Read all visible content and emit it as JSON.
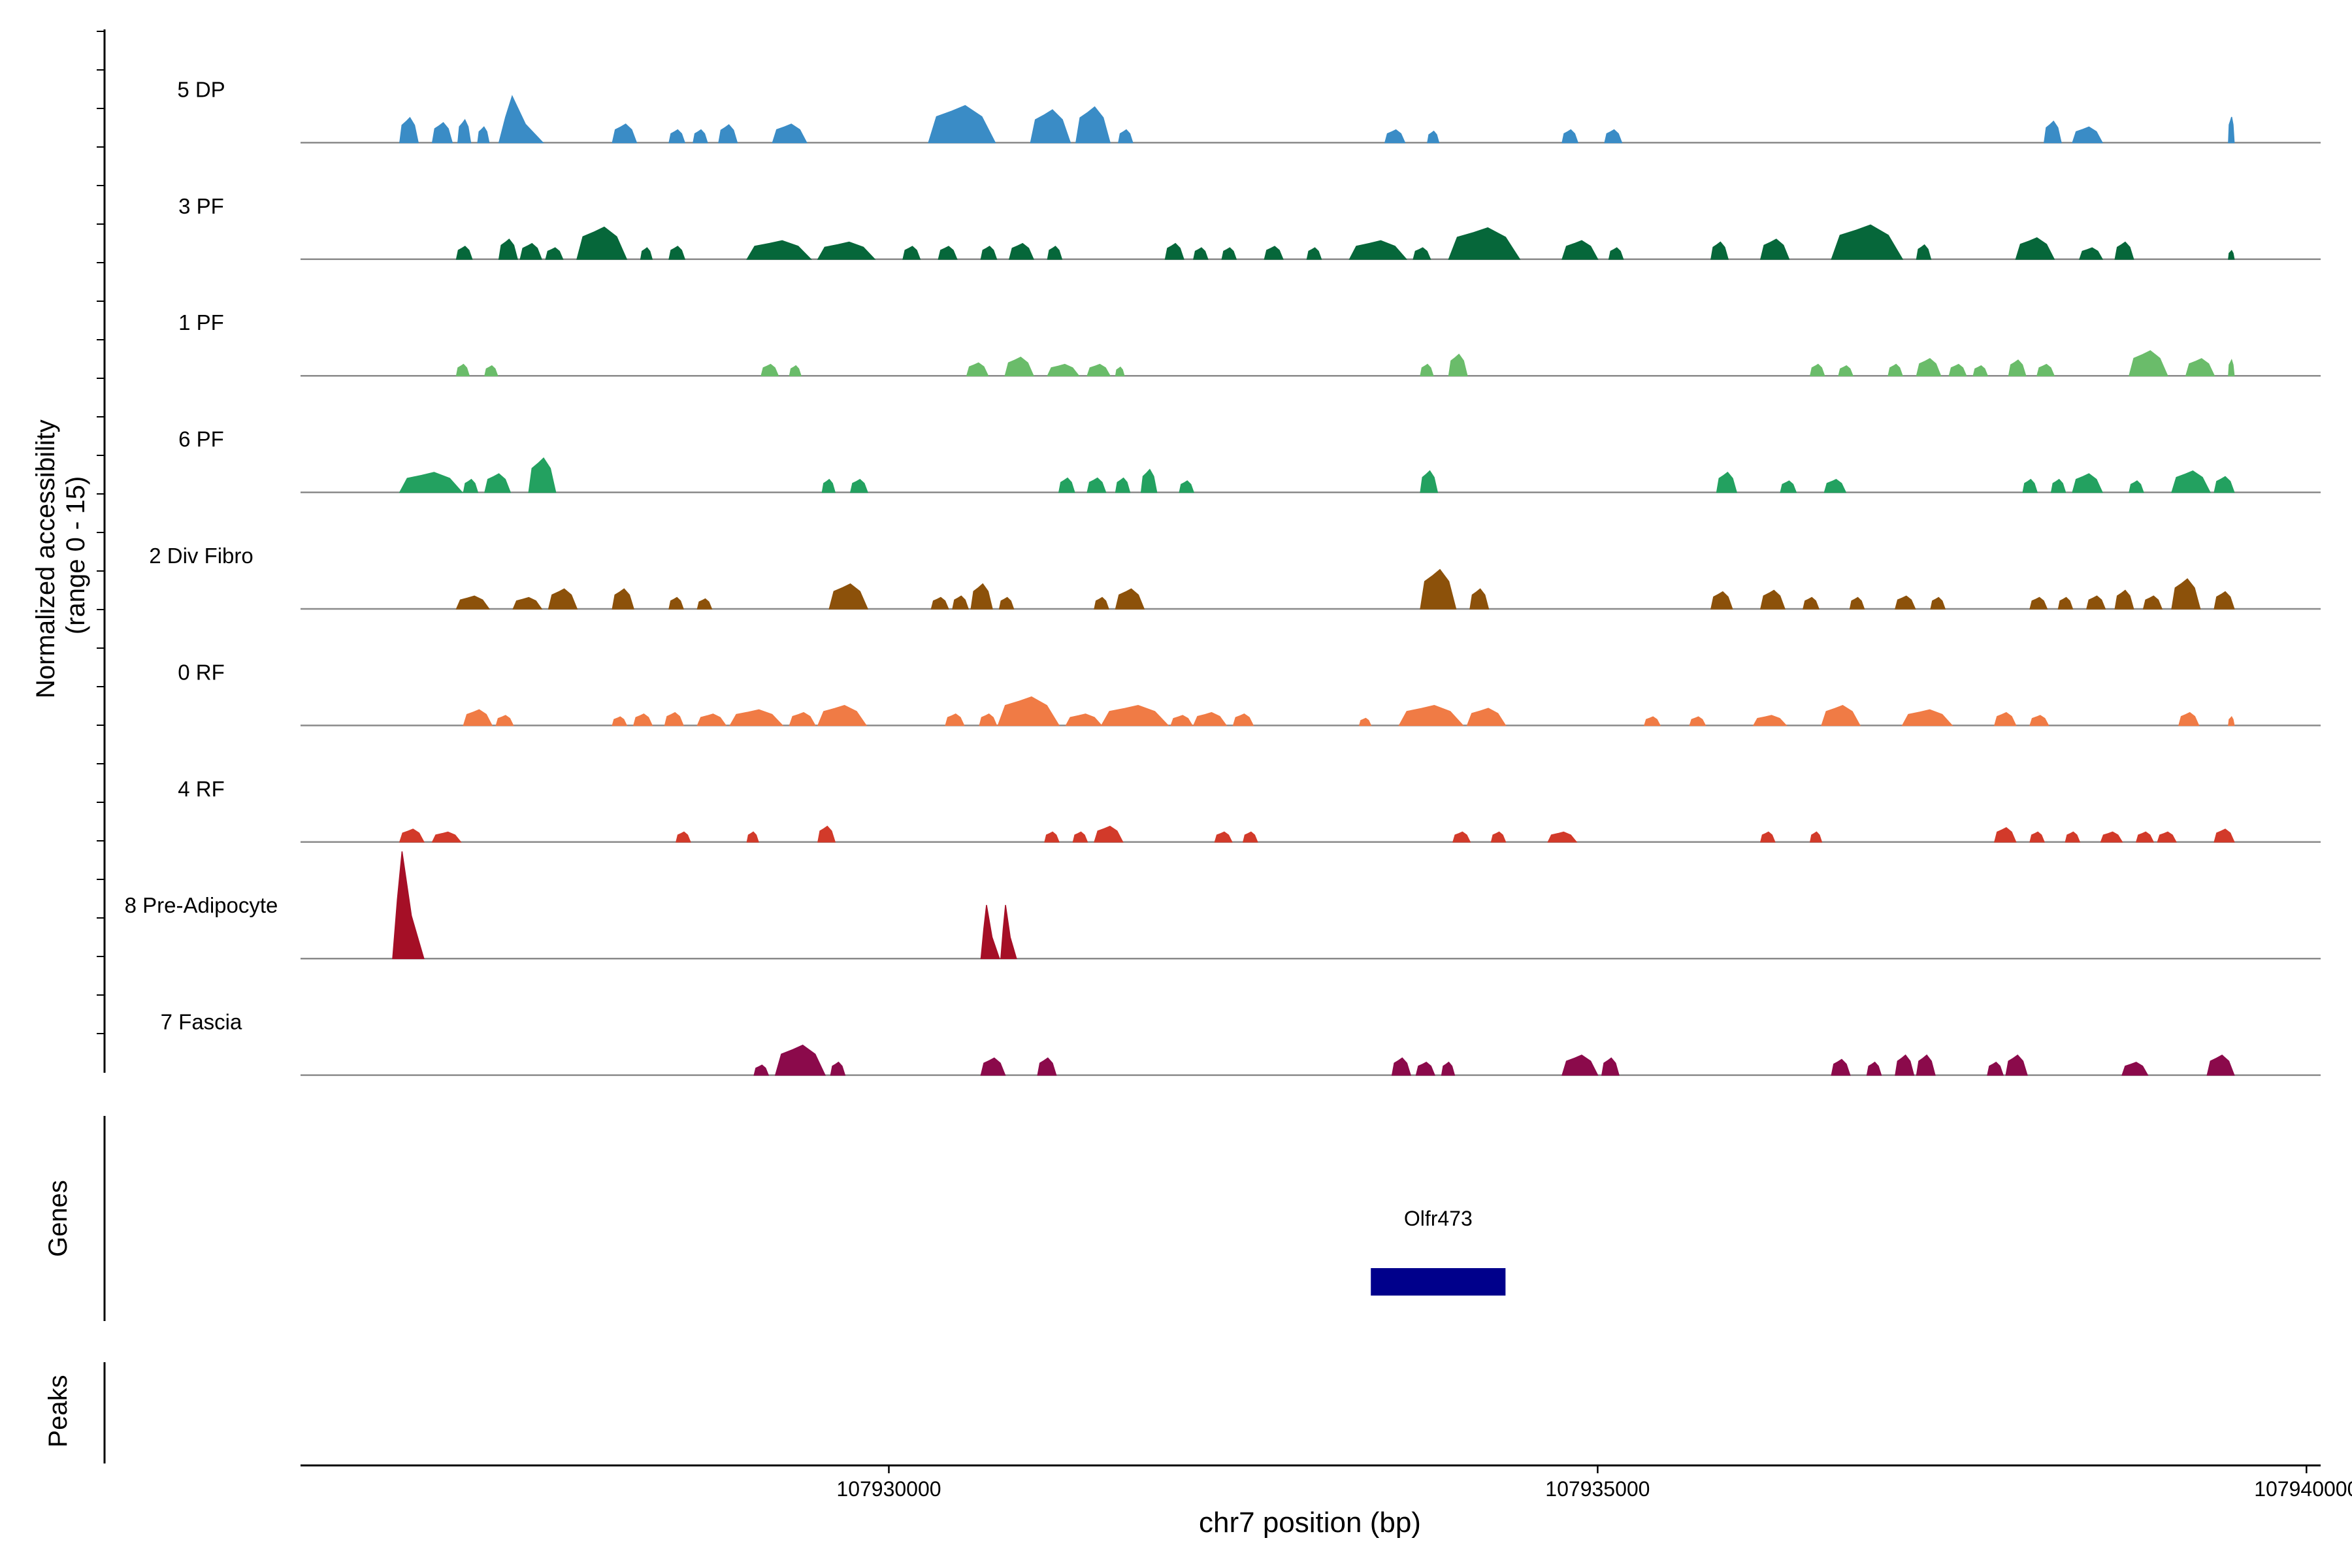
{
  "chart_data": {
    "type": "area",
    "title": "",
    "xlabel": "chr7 position (bp)",
    "ylabel_lines": [
      "Normalized accessibility",
      "(range 0 - 15)"
    ],
    "xlim": [
      107925850,
      107940100
    ],
    "ylim": [
      0,
      15
    ],
    "x_ticks": [
      107930000,
      107935000,
      107940000
    ],
    "x_tick_labels": [
      "107930000",
      "107935000",
      "107940000"
    ],
    "panel_labels": {
      "genes": "Genes",
      "peaks": "Peaks"
    },
    "tracks": [
      {
        "name": "5 DP",
        "color": "#3A8CC6",
        "peaks": [
          [
            107926550,
            107926680,
            3.5
          ],
          [
            107926780,
            107926920,
            2.8
          ],
          [
            107926960,
            107927050,
            3.2
          ],
          [
            107927100,
            107927180,
            2.2
          ],
          [
            107927250,
            107927560,
            6.5
          ],
          [
            107928050,
            107928220,
            2.6
          ],
          [
            107928450,
            107928560,
            1.8
          ],
          [
            107928620,
            107928720,
            1.8
          ],
          [
            107928800,
            107928930,
            2.5
          ],
          [
            107929180,
            107929420,
            2.6
          ],
          [
            107930280,
            107930750,
            5.2
          ],
          [
            107931000,
            107931280,
            4.6
          ],
          [
            107931320,
            107931560,
            5.0
          ],
          [
            107931620,
            107931720,
            1.8
          ],
          [
            107933500,
            107933640,
            1.8
          ],
          [
            107933800,
            107933880,
            1.6
          ],
          [
            107934750,
            107934860,
            1.8
          ],
          [
            107935050,
            107935170,
            1.8
          ],
          [
            107938150,
            107938270,
            3.0
          ],
          [
            107938350,
            107938560,
            2.2
          ],
          [
            107939450,
            107939490,
            3.6
          ]
        ]
      },
      {
        "name": "3 PF",
        "color": "#06673A",
        "peaks": [
          [
            107926950,
            107927060,
            1.8
          ],
          [
            107927250,
            107927380,
            2.8
          ],
          [
            107927400,
            107927550,
            2.2
          ],
          [
            107927580,
            107927700,
            1.6
          ],
          [
            107927800,
            107928150,
            4.5
          ],
          [
            107928250,
            107928330,
            1.6
          ],
          [
            107928450,
            107928560,
            1.8
          ],
          [
            107929000,
            107929450,
            2.6
          ],
          [
            107929500,
            107929900,
            2.4
          ],
          [
            107930100,
            107930220,
            1.8
          ],
          [
            107930350,
            107930480,
            1.8
          ],
          [
            107930650,
            107930760,
            1.8
          ],
          [
            107930850,
            107931020,
            2.2
          ],
          [
            107931120,
            107931220,
            1.8
          ],
          [
            107931950,
            107932080,
            2.2
          ],
          [
            107932150,
            107932250,
            1.6
          ],
          [
            107932350,
            107932450,
            1.6
          ],
          [
            107932650,
            107932780,
            1.8
          ],
          [
            107932950,
            107933050,
            1.6
          ],
          [
            107933250,
            107933650,
            2.6
          ],
          [
            107933700,
            107933820,
            1.6
          ],
          [
            107933950,
            107934450,
            4.4
          ],
          [
            107934750,
            107935000,
            2.6
          ],
          [
            107935080,
            107935180,
            1.6
          ],
          [
            107935800,
            107935920,
            2.4
          ],
          [
            107936150,
            107936350,
            2.8
          ],
          [
            107936650,
            107937150,
            4.8
          ],
          [
            107937250,
            107937350,
            2.0
          ],
          [
            107937950,
            107938220,
            3.0
          ],
          [
            107938400,
            107938560,
            1.6
          ],
          [
            107938650,
            107938780,
            2.4
          ],
          [
            107939450,
            107939490,
            1.2
          ]
        ]
      },
      {
        "name": "1 PF",
        "color": "#6ABC6A",
        "peaks": [
          [
            107926950,
            107927040,
            1.6
          ],
          [
            107927150,
            107927240,
            1.4
          ],
          [
            107929100,
            107929220,
            1.6
          ],
          [
            107929300,
            107929380,
            1.4
          ],
          [
            107930550,
            107930700,
            1.8
          ],
          [
            107930820,
            107931020,
            2.6
          ],
          [
            107931120,
            107931340,
            1.6
          ],
          [
            107931400,
            107931560,
            1.6
          ],
          [
            107931600,
            107931660,
            1.2
          ],
          [
            107933750,
            107933840,
            1.6
          ],
          [
            107933950,
            107934080,
            3.0
          ],
          [
            107936500,
            107936600,
            1.6
          ],
          [
            107936700,
            107936800,
            1.4
          ],
          [
            107937050,
            107937150,
            1.6
          ],
          [
            107937250,
            107937420,
            2.4
          ],
          [
            107937480,
            107937600,
            1.6
          ],
          [
            107937650,
            107937750,
            1.4
          ],
          [
            107937900,
            107938020,
            2.2
          ],
          [
            107938100,
            107938220,
            1.6
          ],
          [
            107938750,
            107939020,
            3.5
          ],
          [
            107939150,
            107939350,
            2.4
          ],
          [
            107939450,
            107939490,
            2.2
          ]
        ]
      },
      {
        "name": "6 PF",
        "color": "#23A160",
        "peaks": [
          [
            107926550,
            107926990,
            2.8
          ],
          [
            107927000,
            107927100,
            1.8
          ],
          [
            107927150,
            107927330,
            2.6
          ],
          [
            107927460,
            107927650,
            4.8
          ],
          [
            107929530,
            107929620,
            1.8
          ],
          [
            107929730,
            107929850,
            1.8
          ],
          [
            107931200,
            107931310,
            2.0
          ],
          [
            107931400,
            107931530,
            2.0
          ],
          [
            107931600,
            107931700,
            2.0
          ],
          [
            107931780,
            107931890,
            3.2
          ],
          [
            107932050,
            107932150,
            1.6
          ],
          [
            107933750,
            107933870,
            3.0
          ],
          [
            107935840,
            107935980,
            2.8
          ],
          [
            107936290,
            107936400,
            1.6
          ],
          [
            107936600,
            107936750,
            1.8
          ],
          [
            107938000,
            107938100,
            1.8
          ],
          [
            107938200,
            107938300,
            1.8
          ],
          [
            107938350,
            107938560,
            2.6
          ],
          [
            107938750,
            107938850,
            1.6
          ],
          [
            107939050,
            107939320,
            3.0
          ],
          [
            107939350,
            107939490,
            2.2
          ]
        ]
      },
      {
        "name": "2 Div Fibro",
        "color": "#8C510A",
        "peaks": [
          [
            107926950,
            107927180,
            1.8
          ],
          [
            107927350,
            107927550,
            1.6
          ],
          [
            107927600,
            107927800,
            2.8
          ],
          [
            107928050,
            107928200,
            2.8
          ],
          [
            107928450,
            107928550,
            1.6
          ],
          [
            107928650,
            107928750,
            1.4
          ],
          [
            107929580,
            107929850,
            3.5
          ],
          [
            107930300,
            107930420,
            1.6
          ],
          [
            107930450,
            107930560,
            1.8
          ],
          [
            107930580,
            107930730,
            3.5
          ],
          [
            107930780,
            107930880,
            1.6
          ],
          [
            107931450,
            107931550,
            1.6
          ],
          [
            107931600,
            107931800,
            2.8
          ],
          [
            107933750,
            107934000,
            5.5
          ],
          [
            107934100,
            107934230,
            2.8
          ],
          [
            107935800,
            107935950,
            2.4
          ],
          [
            107936150,
            107936320,
            2.6
          ],
          [
            107936450,
            107936560,
            1.6
          ],
          [
            107936780,
            107936880,
            1.6
          ],
          [
            107937100,
            107937240,
            1.8
          ],
          [
            107937350,
            107937450,
            1.6
          ],
          [
            107938050,
            107938170,
            1.6
          ],
          [
            107938250,
            107938350,
            1.6
          ],
          [
            107938450,
            107938580,
            1.8
          ],
          [
            107938650,
            107938780,
            2.6
          ],
          [
            107938850,
            107938980,
            1.8
          ],
          [
            107939050,
            107939250,
            4.2
          ],
          [
            107939350,
            107939490,
            2.4
          ]
        ]
      },
      {
        "name": "0 RF",
        "color": "#F07B45",
        "peaks": [
          [
            107927000,
            107927200,
            2.2
          ],
          [
            107927230,
            107927350,
            1.4
          ],
          [
            107928050,
            107928150,
            1.2
          ],
          [
            107928200,
            107928330,
            1.6
          ],
          [
            107928420,
            107928550,
            1.8
          ],
          [
            107928650,
            107928850,
            1.6
          ],
          [
            107928880,
            107929250,
            2.2
          ],
          [
            107929300,
            107929480,
            1.8
          ],
          [
            107929500,
            107929840,
            2.8
          ],
          [
            107930400,
            107930530,
            1.6
          ],
          [
            107930640,
            107930760,
            1.6
          ],
          [
            107930770,
            107931200,
            4.0
          ],
          [
            107931250,
            107931500,
            1.6
          ],
          [
            107931500,
            107931970,
            2.8
          ],
          [
            107931990,
            107932140,
            1.4
          ],
          [
            107932150,
            107932380,
            1.8
          ],
          [
            107932430,
            107932570,
            1.6
          ],
          [
            107933320,
            107933400,
            1.0
          ],
          [
            107933600,
            107934050,
            2.8
          ],
          [
            107934080,
            107934350,
            2.4
          ],
          [
            107935330,
            107935440,
            1.2
          ],
          [
            107935650,
            107935760,
            1.2
          ],
          [
            107936100,
            107936330,
            1.4
          ],
          [
            107936580,
            107936850,
            2.8
          ],
          [
            107937150,
            107937500,
            2.2
          ],
          [
            107937800,
            107937950,
            1.8
          ],
          [
            107938050,
            107938180,
            1.4
          ],
          [
            107939100,
            107939240,
            1.8
          ],
          [
            107939450,
            107939490,
            1.2
          ]
        ]
      },
      {
        "name": "4 RF",
        "color": "#D23A2A",
        "peaks": [
          [
            107926550,
            107926720,
            1.8
          ],
          [
            107926780,
            107926980,
            1.4
          ],
          [
            107928500,
            107928600,
            1.4
          ],
          [
            107929000,
            107929080,
            1.4
          ],
          [
            107929500,
            107929620,
            2.2
          ],
          [
            107931100,
            107931200,
            1.4
          ],
          [
            107931300,
            107931400,
            1.4
          ],
          [
            107931450,
            107931650,
            2.2
          ],
          [
            107932300,
            107932420,
            1.4
          ],
          [
            107932500,
            107932600,
            1.4
          ],
          [
            107933980,
            107934100,
            1.4
          ],
          [
            107934250,
            107934350,
            1.4
          ],
          [
            107934650,
            107934850,
            1.4
          ],
          [
            107936150,
            107936250,
            1.4
          ],
          [
            107936500,
            107936580,
            1.4
          ],
          [
            107937800,
            107937950,
            2.0
          ],
          [
            107938050,
            107938150,
            1.4
          ],
          [
            107938300,
            107938400,
            1.4
          ],
          [
            107938550,
            107938700,
            1.4
          ],
          [
            107938800,
            107938920,
            1.4
          ],
          [
            107938950,
            107939080,
            1.4
          ],
          [
            107939350,
            107939490,
            1.8
          ]
        ]
      },
      {
        "name": "8 Pre-Adipocyte",
        "color": "#A50F26",
        "peaks": [
          [
            107926500,
            107926720,
            15.0
          ],
          [
            107930650,
            107930780,
            7.5
          ],
          [
            107930790,
            107930900,
            7.5
          ]
        ]
      },
      {
        "name": "7 Fascia",
        "color": "#8B0A4B",
        "peaks": [
          [
            107929050,
            107929150,
            1.4
          ],
          [
            107929200,
            107929550,
            4.2
          ],
          [
            107929590,
            107929690,
            1.8
          ],
          [
            107930650,
            107930820,
            2.4
          ],
          [
            107931050,
            107931180,
            2.4
          ],
          [
            107933550,
            107933680,
            2.4
          ],
          [
            107933720,
            107933850,
            1.8
          ],
          [
            107933900,
            107933990,
            1.8
          ],
          [
            107934750,
            107935000,
            2.8
          ],
          [
            107935030,
            107935150,
            2.4
          ],
          [
            107936650,
            107936780,
            2.2
          ],
          [
            107936900,
            107937000,
            1.8
          ],
          [
            107937100,
            107937230,
            2.8
          ],
          [
            107937250,
            107937380,
            2.8
          ],
          [
            107937750,
            107937860,
            1.8
          ],
          [
            107937880,
            107938030,
            2.8
          ],
          [
            107938700,
            107938880,
            1.8
          ],
          [
            107939300,
            107939490,
            2.8
          ]
        ]
      }
    ],
    "genes": [
      {
        "name": "Olfr473",
        "start": 107933400,
        "end": 107934350,
        "color": "#00008B"
      }
    ],
    "peaks_track": []
  }
}
